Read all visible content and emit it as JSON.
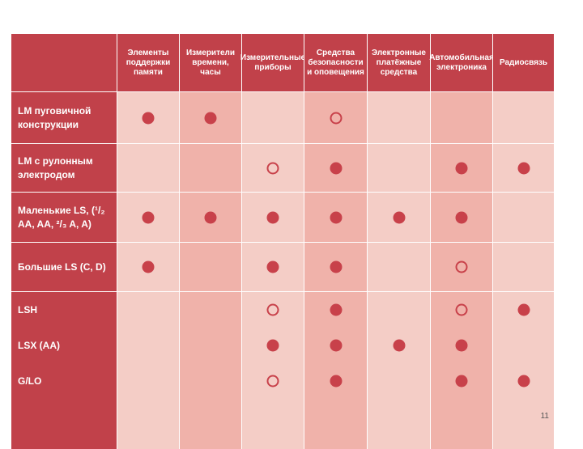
{
  "header": {
    "columns": [
      "Элементы поддержки памяти",
      "Измерители времени, часы",
      "Измерительные приборы",
      "Средства безопасности и оповещения",
      "Электронные платёжные средства",
      "Автомобильная электроника",
      "Радиосвязь"
    ]
  },
  "rows": [
    {
      "label": "LM пуговичной конструкции",
      "marks": [
        "filled",
        "filled",
        "",
        "open",
        "",
        "",
        ""
      ]
    },
    {
      "label": "LM с рулонным электродом",
      "marks": [
        "",
        "",
        "open",
        "filled",
        "",
        "filled",
        "filled"
      ]
    },
    {
      "label": "Маленькие LS, (¹/₂ AA, AA, ²/₃ A, A)",
      "marks": [
        "filled",
        "filled",
        "filled",
        "filled",
        "filled",
        "filled",
        ""
      ]
    },
    {
      "label": "Большие LS (C, D)",
      "marks": [
        "filled",
        "",
        "filled",
        "filled",
        "",
        "open",
        ""
      ]
    }
  ],
  "group": {
    "rows": [
      {
        "label": "LSH",
        "marks": [
          "",
          "",
          "open",
          "filled",
          "",
          "open",
          "filled"
        ]
      },
      {
        "label": "LSX  (AA)",
        "marks": [
          "",
          "",
          "filled",
          "filled",
          "filled",
          "filled",
          ""
        ]
      },
      {
        "label": "G/LO",
        "marks": [
          "",
          "",
          "open",
          "filled",
          "",
          "filled",
          "filled"
        ]
      }
    ]
  },
  "legend": {
    "filled": "filled-circle",
    "open": "open-circle"
  },
  "colors": {
    "header": "#c1414a",
    "cell_light": "#f4cdc6",
    "cell_dark": "#f0b2aa",
    "mark": "#c8414a"
  },
  "page_number": "11"
}
